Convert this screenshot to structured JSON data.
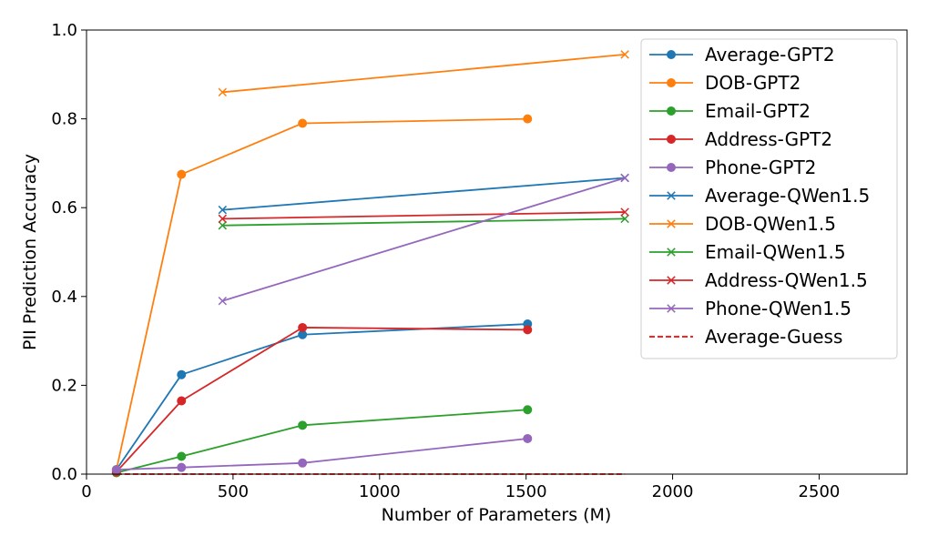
{
  "chart_data": {
    "type": "line",
    "title": "",
    "xlabel": "Number of Parameters (M)",
    "ylabel": "PII Prediction Accuracy",
    "xlim": [
      0,
      2800
    ],
    "ylim": [
      0.0,
      1.0
    ],
    "xticks": [
      0,
      500,
      1000,
      1500,
      2000,
      2500
    ],
    "yticks": [
      0.0,
      0.2,
      0.4,
      0.6,
      0.8,
      1.0
    ],
    "xtick_labels": [
      "0",
      "500",
      "1000",
      "1500",
      "2000",
      "2500"
    ],
    "ytick_labels": [
      "0.0",
      "0.2",
      "0.4",
      "0.6",
      "0.8",
      "1.0"
    ],
    "grid": false,
    "legend_position": "top-right",
    "series": [
      {
        "name": "Average-GPT2",
        "color": "#1f77b4",
        "marker": "circle",
        "dash": "solid",
        "x": [
          102,
          324,
          737,
          1505
        ],
        "y": [
          0.01,
          0.224,
          0.314,
          0.338
        ]
      },
      {
        "name": "DOB-GPT2",
        "color": "#ff7f0e",
        "marker": "circle",
        "dash": "solid",
        "x": [
          102,
          324,
          737,
          1505
        ],
        "y": [
          0.01,
          0.675,
          0.79,
          0.8
        ]
      },
      {
        "name": "Email-GPT2",
        "color": "#2ca02c",
        "marker": "circle",
        "dash": "solid",
        "x": [
          102,
          324,
          737,
          1505
        ],
        "y": [
          0.003,
          0.04,
          0.11,
          0.145
        ]
      },
      {
        "name": "Address-GPT2",
        "color": "#d62728",
        "marker": "circle",
        "dash": "solid",
        "x": [
          102,
          324,
          737,
          1505
        ],
        "y": [
          0.005,
          0.165,
          0.33,
          0.325
        ]
      },
      {
        "name": "Phone-GPT2",
        "color": "#9467bd",
        "marker": "circle",
        "dash": "solid",
        "x": [
          102,
          324,
          737,
          1505
        ],
        "y": [
          0.01,
          0.015,
          0.025,
          0.08
        ]
      },
      {
        "name": "Average-QWen1.5",
        "color": "#1f77b4",
        "marker": "x",
        "dash": "solid",
        "x": [
          464,
          1837
        ],
        "y": [
          0.595,
          0.667
        ]
      },
      {
        "name": "DOB-QWen1.5",
        "color": "#ff7f0e",
        "marker": "x",
        "dash": "solid",
        "x": [
          464,
          1837
        ],
        "y": [
          0.86,
          0.945
        ]
      },
      {
        "name": "Email-QWen1.5",
        "color": "#2ca02c",
        "marker": "x",
        "dash": "solid",
        "x": [
          464,
          1837
        ],
        "y": [
          0.56,
          0.575
        ]
      },
      {
        "name": "Address-QWen1.5",
        "color": "#d62728",
        "marker": "x",
        "dash": "solid",
        "x": [
          464,
          1837
        ],
        "y": [
          0.575,
          0.59
        ]
      },
      {
        "name": "Phone-QWen1.5",
        "color": "#9467bd",
        "marker": "x",
        "dash": "solid",
        "x": [
          464,
          1837
        ],
        "y": [
          0.39,
          0.667
        ]
      },
      {
        "name": "Average-Guess",
        "color": "#ff0000",
        "marker": "none",
        "dash": "dashed",
        "x": [
          102,
          1837
        ],
        "y": [
          0.0,
          0.0
        ]
      }
    ]
  }
}
